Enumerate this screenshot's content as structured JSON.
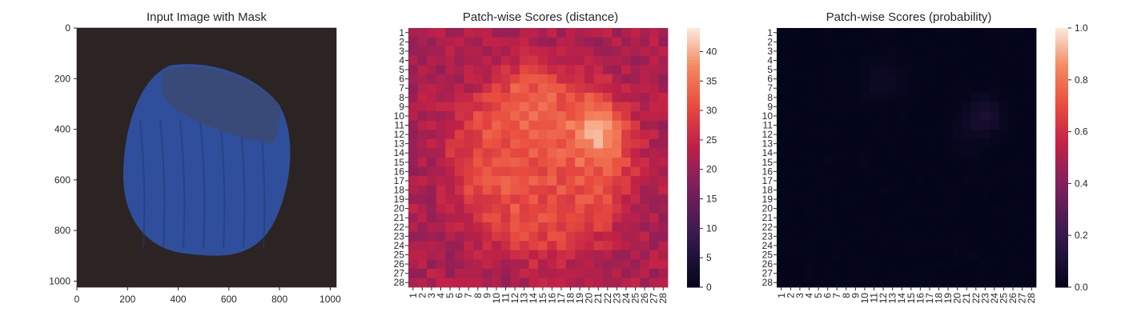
{
  "chart_data": [
    {
      "type": "image",
      "title": "Input Image with Mask",
      "xlim": [
        0,
        1024
      ],
      "ylim": [
        1024,
        0
      ],
      "xticks": [
        "0",
        "200",
        "400",
        "600",
        "800",
        "1000"
      ],
      "yticks": [
        "0",
        "200",
        "400",
        "600",
        "800",
        "1000"
      ],
      "background_color": "#2b2422",
      "object_color": "#2f4f9c",
      "object_cap_color": "#3a4a78",
      "object_label": "hazelnut"
    },
    {
      "type": "heatmap",
      "title": "Patch-wise Scores (distance)",
      "rows": 28,
      "cols": 28,
      "xticks": [
        "1",
        "2",
        "3",
        "4",
        "5",
        "6",
        "7",
        "8",
        "9",
        "10",
        "11",
        "12",
        "13",
        "14",
        "15",
        "16",
        "17",
        "18",
        "19",
        "20",
        "21",
        "22",
        "23",
        "24",
        "25",
        "26",
        "27",
        "28"
      ],
      "yticks": [
        "1",
        "2",
        "3",
        "4",
        "5",
        "6",
        "7",
        "8",
        "9",
        "10",
        "11",
        "12",
        "13",
        "14",
        "15",
        "16",
        "17",
        "18",
        "19",
        "20",
        "21",
        "22",
        "23",
        "24",
        "25",
        "26",
        "27",
        "28"
      ],
      "colorbar": {
        "min": 0,
        "max": 44,
        "ticks": [
          "0",
          "5",
          "10",
          "15",
          "20",
          "25",
          "30",
          "35",
          "40"
        ]
      },
      "colormap": "rocket",
      "value_summary": {
        "background": 22,
        "object_interior": 31,
        "peak": 44,
        "peak_cell": [
          12,
          21
        ]
      }
    },
    {
      "type": "heatmap",
      "title": "Patch-wise Scores (probability)",
      "rows": 28,
      "cols": 28,
      "xticks": [
        "1",
        "2",
        "3",
        "4",
        "5",
        "6",
        "7",
        "8",
        "9",
        "10",
        "11",
        "12",
        "13",
        "14",
        "15",
        "16",
        "17",
        "18",
        "19",
        "20",
        "21",
        "22",
        "23",
        "24",
        "25",
        "26",
        "27",
        "28"
      ],
      "yticks": [
        "1",
        "2",
        "3",
        "4",
        "5",
        "6",
        "7",
        "8",
        "9",
        "10",
        "11",
        "12",
        "13",
        "14",
        "15",
        "16",
        "17",
        "18",
        "19",
        "20",
        "21",
        "22",
        "23",
        "24",
        "25",
        "26",
        "27",
        "28"
      ],
      "colorbar": {
        "min": 0.0,
        "max": 1.0,
        "ticks": [
          "0.0",
          "0.2",
          "0.4",
          "0.6",
          "0.8",
          "1.0"
        ]
      },
      "colormap": "rocket",
      "value_summary": {
        "background": 0.0,
        "max_value": 0.12,
        "peak_cell": [
          10,
          23
        ]
      }
    }
  ]
}
